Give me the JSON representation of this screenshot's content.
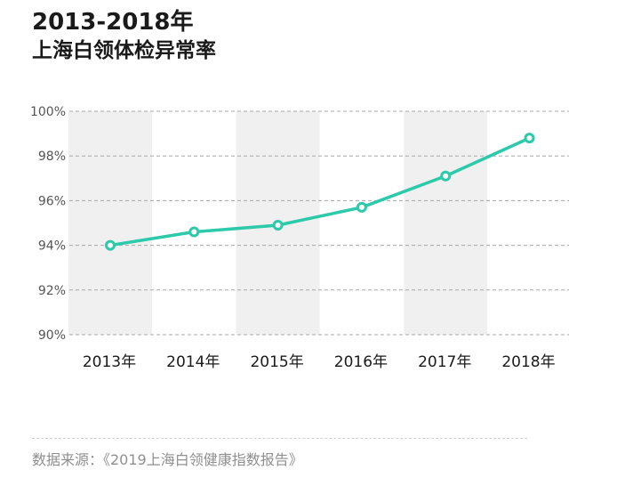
{
  "title": {
    "line1": "2013-2018年",
    "line2": "上海白领体检异常率"
  },
  "source": "数据来源：《2019上海白领健康指数报告》",
  "colors": {
    "line": "#2cc9aa",
    "band": "#f0f0f0",
    "grid": "#a8a8a8",
    "text": "#1a1a1a",
    "tick": "#555555"
  },
  "chart_data": {
    "type": "line",
    "categories": [
      "2013年",
      "2014年",
      "2015年",
      "2016年",
      "2017年",
      "2018年"
    ],
    "values": [
      94.0,
      94.6,
      94.9,
      95.7,
      97.1,
      98.8
    ],
    "y_ticks": [
      "90%",
      "92%",
      "94%",
      "96%",
      "98%",
      "100%"
    ],
    "y_tick_values": [
      90,
      92,
      94,
      96,
      98,
      100
    ],
    "ylim": [
      90,
      100
    ],
    "grid": true,
    "alternating_bands": true
  }
}
